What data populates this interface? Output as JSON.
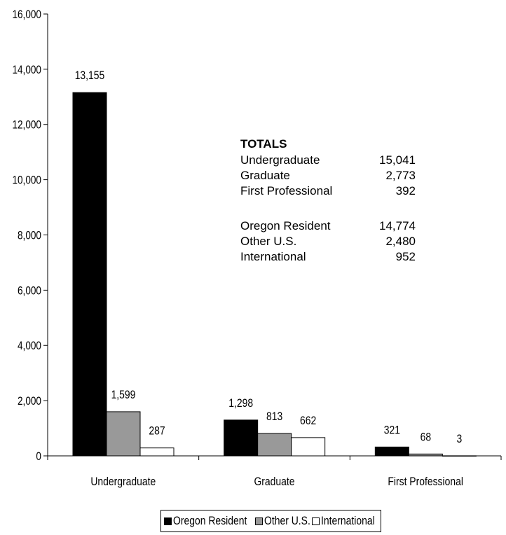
{
  "chart_data": {
    "type": "bar",
    "categories": [
      "Undergraduate",
      "Graduate",
      "First Professional"
    ],
    "series": [
      {
        "name": "Oregon Resident",
        "values": [
          13155,
          1298,
          321
        ],
        "labels": [
          "13,155",
          "1,298",
          "321"
        ],
        "color": "#000000"
      },
      {
        "name": "Other U.S.",
        "values": [
          1599,
          813,
          68
        ],
        "labels": [
          "1,599",
          "813",
          "68"
        ],
        "color": "#999999"
      },
      {
        "name": "International",
        "values": [
          287,
          662,
          3
        ],
        "labels": [
          "287",
          "662",
          "3"
        ],
        "color": "#ffffff"
      }
    ],
    "ylim": [
      0,
      16000
    ],
    "yticks": [
      0,
      2000,
      4000,
      6000,
      8000,
      10000,
      12000,
      14000,
      16000
    ],
    "ytick_labels": [
      "0",
      "2,000",
      "4,000",
      "6,000",
      "8,000",
      "10,000",
      "12,000",
      "14,000",
      "16,000"
    ],
    "title": "",
    "xlabel": "",
    "ylabel": "",
    "grid": false,
    "legend_position": "bottom",
    "annotation": {
      "heading": "TOTALS",
      "groups": [
        [
          {
            "label": "Undergraduate",
            "value": "15,041"
          },
          {
            "label": "Graduate",
            "value": "2,773"
          },
          {
            "label": "First Professional",
            "value": "392"
          }
        ],
        [
          {
            "label": "Oregon Resident",
            "value": "14,774"
          },
          {
            "label": "Other U.S.",
            "value": "2,480"
          },
          {
            "label": "International",
            "value": "952"
          }
        ]
      ]
    }
  }
}
